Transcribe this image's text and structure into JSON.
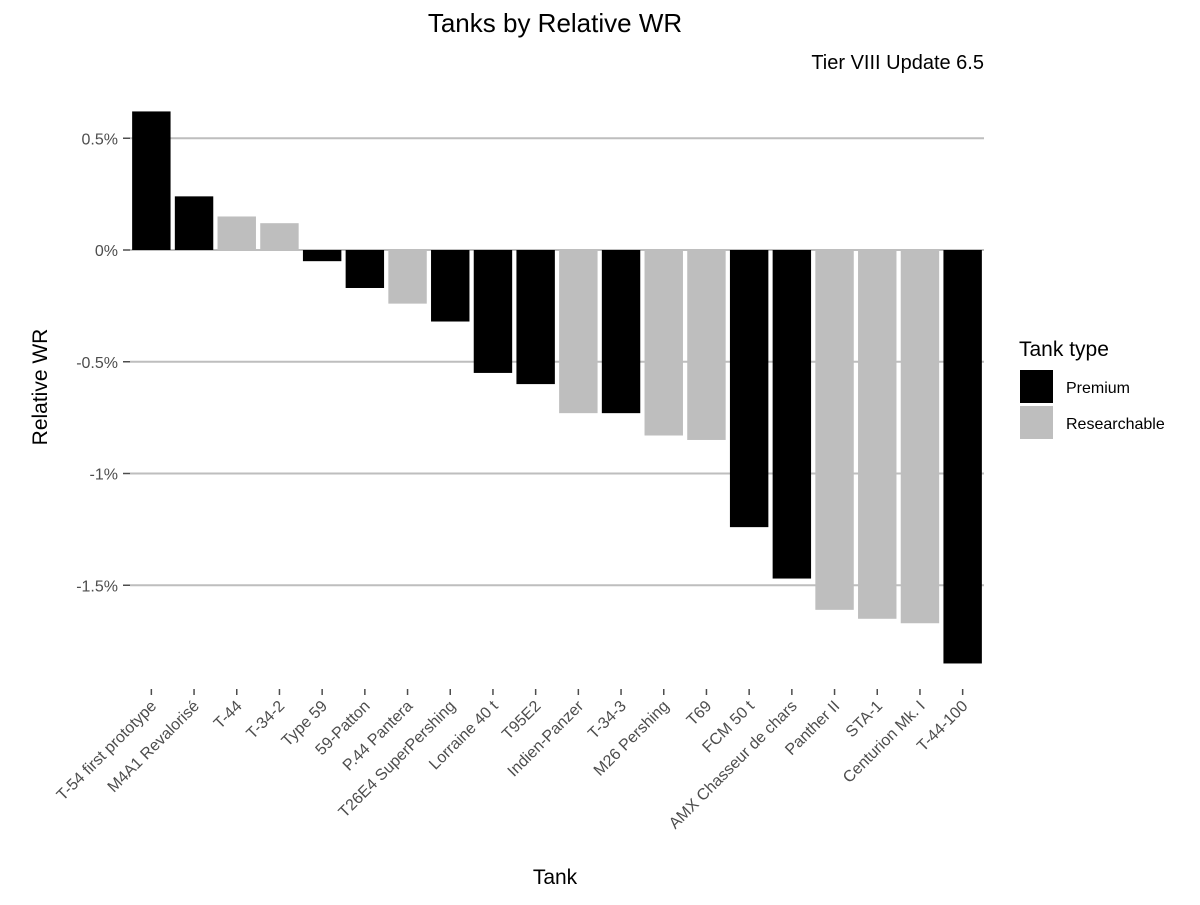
{
  "chart_data": {
    "type": "bar",
    "title": "Tanks by Relative WR",
    "subtitle": "Tier VIII Update 6.5",
    "xlabel": "Tank",
    "ylabel": "Relative WR",
    "ylim": [
      -1.9,
      0.65
    ],
    "yticks": [
      {
        "value": 0.5,
        "label": "0.5%"
      },
      {
        "value": 0.0,
        "label": "0%"
      },
      {
        "value": -0.5,
        "label": "-0.5%"
      },
      {
        "value": -1.0,
        "label": "-1%"
      },
      {
        "value": -1.5,
        "label": "-1.5%"
      }
    ],
    "grid": true,
    "legend": {
      "title": "Tank type",
      "position": "right",
      "entries": [
        {
          "name": "Premium",
          "color": "#000000"
        },
        {
          "name": "Researchable",
          "color": "#bebebe"
        }
      ]
    },
    "categories": [
      "T-54 first prototype",
      "M4A1 Revalorisé",
      "T-44",
      "T-34-2",
      "Type 59",
      "59-Patton",
      "P.44 Pantera",
      "T26E4 SuperPershing",
      "Lorraine 40 t",
      "T95E2",
      "Indien-Panzer",
      "T-34-3",
      "M26 Pershing",
      "T69",
      "FCM 50 t",
      "AMX Chasseur de chars",
      "Panther II",
      "STA-1",
      "Centurion Mk. I",
      "T-44-100"
    ],
    "values": [
      0.62,
      0.24,
      0.15,
      0.12,
      -0.05,
      -0.17,
      -0.24,
      -0.32,
      -0.55,
      -0.6,
      -0.73,
      -0.73,
      -0.83,
      -0.85,
      -1.24,
      -1.47,
      -1.61,
      -1.65,
      -1.67,
      -1.85
    ],
    "types": [
      "Premium",
      "Premium",
      "Researchable",
      "Researchable",
      "Premium",
      "Premium",
      "Researchable",
      "Premium",
      "Premium",
      "Premium",
      "Researchable",
      "Premium",
      "Researchable",
      "Researchable",
      "Premium",
      "Premium",
      "Researchable",
      "Researchable",
      "Researchable",
      "Premium"
    ]
  }
}
